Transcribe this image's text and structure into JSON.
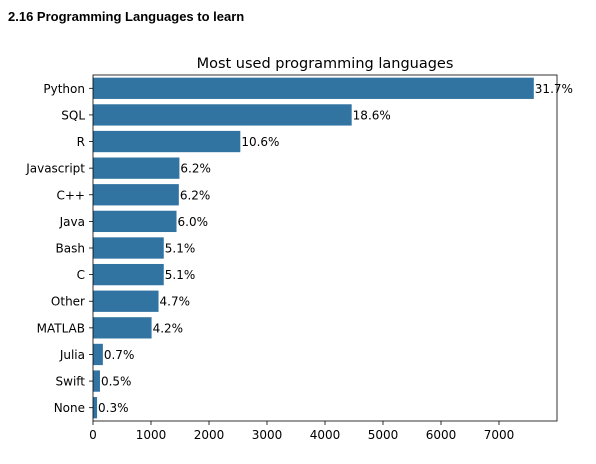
{
  "page": {
    "section_heading": "2.16 Programming Languages to learn"
  },
  "colors": {
    "bar": "#3274a1",
    "axis": "#000000"
  },
  "chart_data": {
    "type": "bar",
    "orientation": "horizontal",
    "title": "Most used programming languages",
    "xlabel": "",
    "ylabel": "",
    "categories": [
      "Python",
      "SQL",
      "R",
      "Javascript",
      "C++",
      "Java",
      "Bash",
      "C",
      "Other",
      "MATLAB",
      "Julia",
      "Swift",
      "None"
    ],
    "values": [
      7600,
      4460,
      2540,
      1490,
      1480,
      1440,
      1220,
      1220,
      1130,
      1010,
      170,
      120,
      70
    ],
    "data_labels": [
      "31.7%",
      "18.6%",
      "10.6%",
      "6.2%",
      "6.2%",
      "6.0%",
      "5.1%",
      "5.1%",
      "4.7%",
      "4.2%",
      "0.7%",
      "0.5%",
      "0.3%"
    ],
    "xlim": [
      0,
      8000
    ],
    "xticks": [
      0,
      1000,
      2000,
      3000,
      4000,
      5000,
      6000,
      7000
    ],
    "grid": false,
    "legend": false
  }
}
